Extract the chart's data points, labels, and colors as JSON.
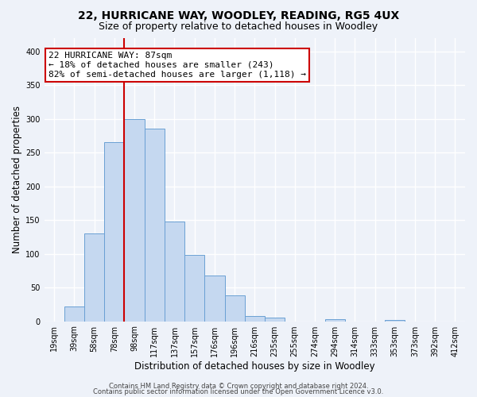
{
  "title": "22, HURRICANE WAY, WOODLEY, READING, RG5 4UX",
  "subtitle": "Size of property relative to detached houses in Woodley",
  "xlabel": "Distribution of detached houses by size in Woodley",
  "ylabel": "Number of detached properties",
  "bar_labels": [
    "19sqm",
    "39sqm",
    "58sqm",
    "78sqm",
    "98sqm",
    "117sqm",
    "137sqm",
    "157sqm",
    "176sqm",
    "196sqm",
    "216sqm",
    "235sqm",
    "255sqm",
    "274sqm",
    "294sqm",
    "314sqm",
    "333sqm",
    "353sqm",
    "373sqm",
    "392sqm",
    "412sqm"
  ],
  "bar_values": [
    0,
    22,
    130,
    265,
    300,
    285,
    148,
    98,
    68,
    38,
    8,
    5,
    0,
    0,
    3,
    0,
    0,
    2,
    0,
    0,
    0
  ],
  "bar_color": "#c5d8f0",
  "bar_edge_color": "#6aa0d4",
  "vline_x": 3.5,
  "vline_color": "#cc0000",
  "annotation_text": "22 HURRICANE WAY: 87sqm\n← 18% of detached houses are smaller (243)\n82% of semi-detached houses are larger (1,118) →",
  "annotation_box_color": "#ffffff",
  "annotation_box_edge": "#cc0000",
  "ylim": [
    0,
    420
  ],
  "yticks": [
    0,
    50,
    100,
    150,
    200,
    250,
    300,
    350,
    400
  ],
  "footer1": "Contains HM Land Registry data © Crown copyright and database right 2024.",
  "footer2": "Contains public sector information licensed under the Open Government Licence v3.0.",
  "background_color": "#eef2f9",
  "grid_color": "#ffffff",
  "title_fontsize": 10,
  "subtitle_fontsize": 9,
  "axis_label_fontsize": 8.5,
  "tick_fontsize": 7,
  "annotation_fontsize": 8,
  "footer_fontsize": 6
}
